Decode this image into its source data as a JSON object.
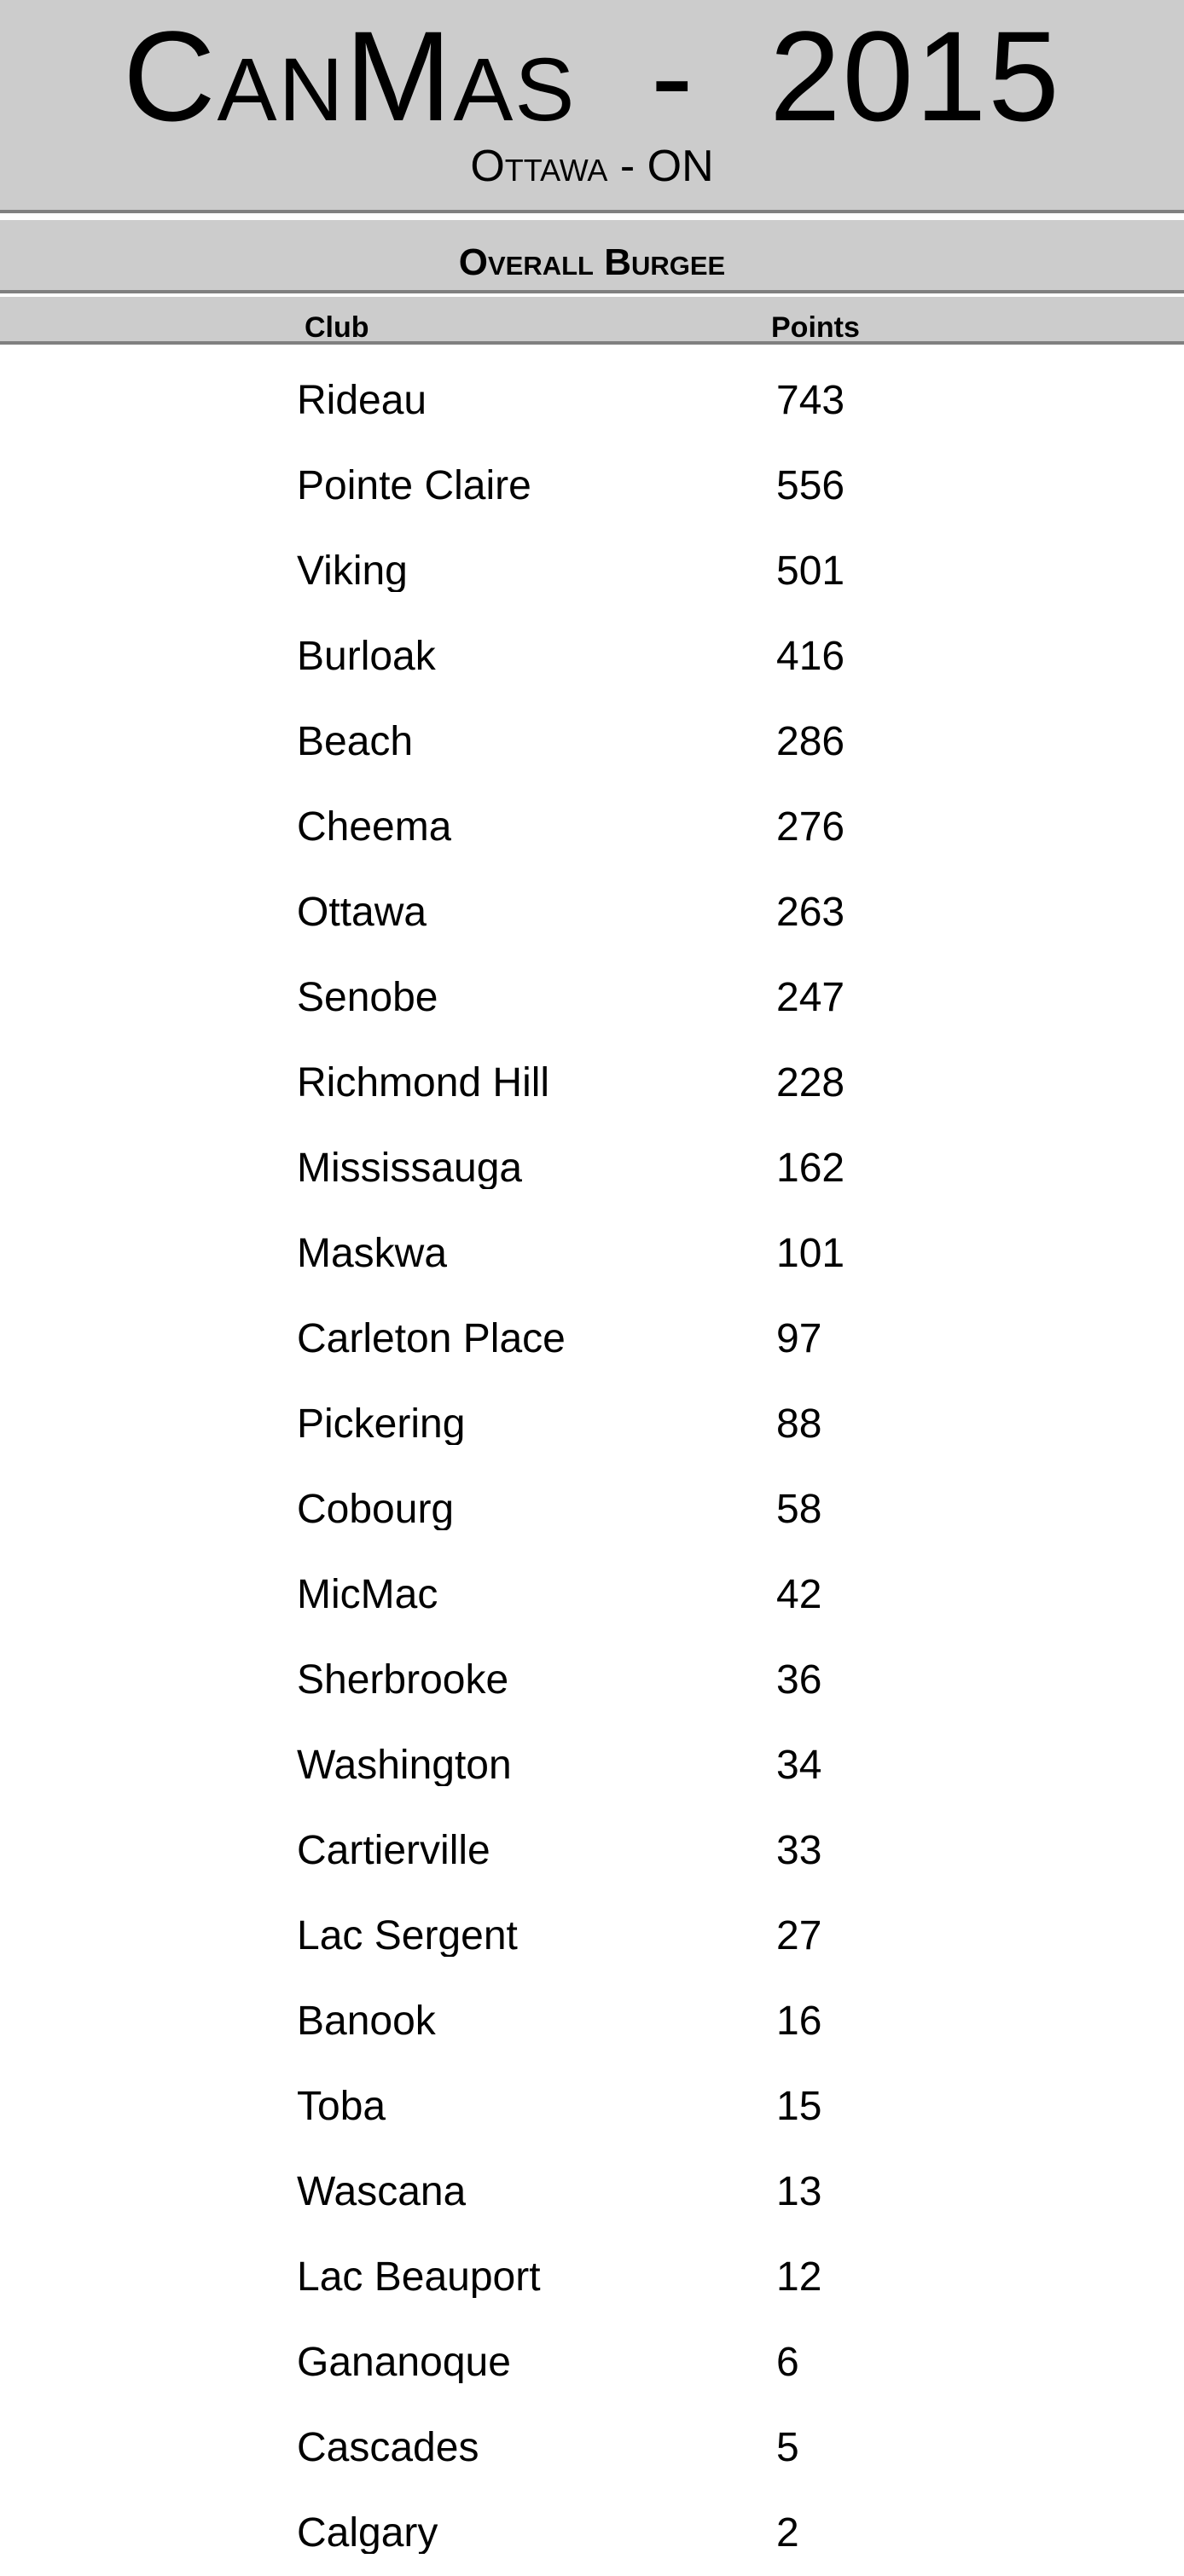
{
  "header": {
    "title": "CanMas  -  2015",
    "subtitle": "Ottawa - ON"
  },
  "section": {
    "title": "Overall Burgee"
  },
  "table": {
    "columns": [
      "Club",
      "Points"
    ],
    "rows": [
      [
        "Rideau",
        "743"
      ],
      [
        "Pointe Claire",
        "556"
      ],
      [
        "Viking",
        "501"
      ],
      [
        "Burloak",
        "416"
      ],
      [
        "Beach",
        "286"
      ],
      [
        "Cheema",
        "276"
      ],
      [
        "Ottawa",
        "263"
      ],
      [
        "Senobe",
        "247"
      ],
      [
        "Richmond Hill",
        "228"
      ],
      [
        "Mississauga",
        "162"
      ],
      [
        "Maskwa",
        "101"
      ],
      [
        "Carleton Place",
        "97"
      ],
      [
        "Pickering",
        "88"
      ],
      [
        "Cobourg",
        "58"
      ],
      [
        "MicMac",
        "42"
      ],
      [
        "Sherbrooke",
        "36"
      ],
      [
        "Washington",
        "34"
      ],
      [
        "Cartierville",
        "33"
      ],
      [
        "Lac Sergent",
        "27"
      ],
      [
        "Banook",
        "16"
      ],
      [
        "Toba",
        "15"
      ],
      [
        "Wascana",
        "13"
      ],
      [
        "Lac Beauport",
        "12"
      ],
      [
        "Gananoque",
        "6"
      ],
      [
        "Cascades",
        "5"
      ],
      [
        "Calgary",
        "2"
      ]
    ]
  }
}
